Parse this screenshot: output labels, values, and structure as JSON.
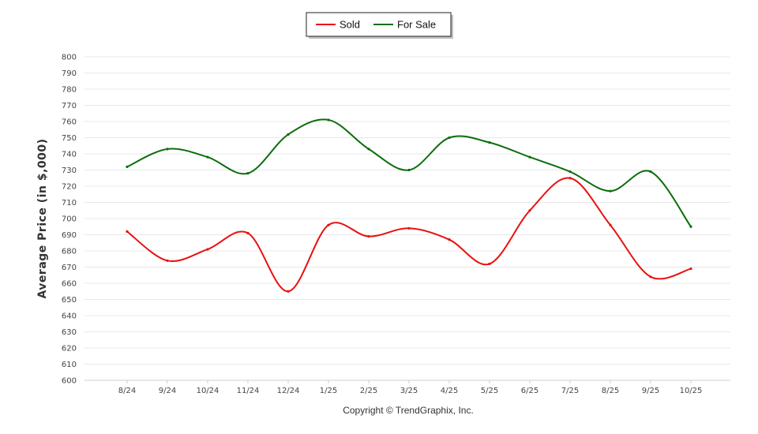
{
  "chart_data": {
    "type": "line",
    "categories": [
      "8/24",
      "9/24",
      "10/24",
      "11/24",
      "12/24",
      "1/25",
      "2/25",
      "3/25",
      "4/25",
      "5/25",
      "6/25",
      "7/25",
      "8/25",
      "9/25",
      "10/25"
    ],
    "series": [
      {
        "name": "Sold",
        "color": "#e81010",
        "values": [
          692,
          674,
          681,
          691,
          655,
          696,
          689,
          694,
          687,
          672,
          705,
          725,
          696,
          664,
          669
        ]
      },
      {
        "name": "For Sale",
        "color": "#0a6e0a",
        "values": [
          732,
          743,
          738,
          728,
          752,
          761,
          743,
          730,
          750,
          747,
          738,
          729,
          717,
          729,
          695
        ]
      }
    ],
    "ylabel": "Average Price (in $,000)",
    "xlabel": "",
    "ylim": [
      600,
      800
    ],
    "ytick_step": 10,
    "yticks": [
      "600",
      "610",
      "620",
      "630",
      "640",
      "650",
      "660",
      "670",
      "680",
      "690",
      "700",
      "710",
      "720",
      "730",
      "740",
      "750",
      "760",
      "770",
      "780",
      "790",
      "800"
    ],
    "grid": true,
    "legend_position": "top-center"
  },
  "footer": {
    "copyright": "Copyright © TrendGraphix, Inc."
  }
}
